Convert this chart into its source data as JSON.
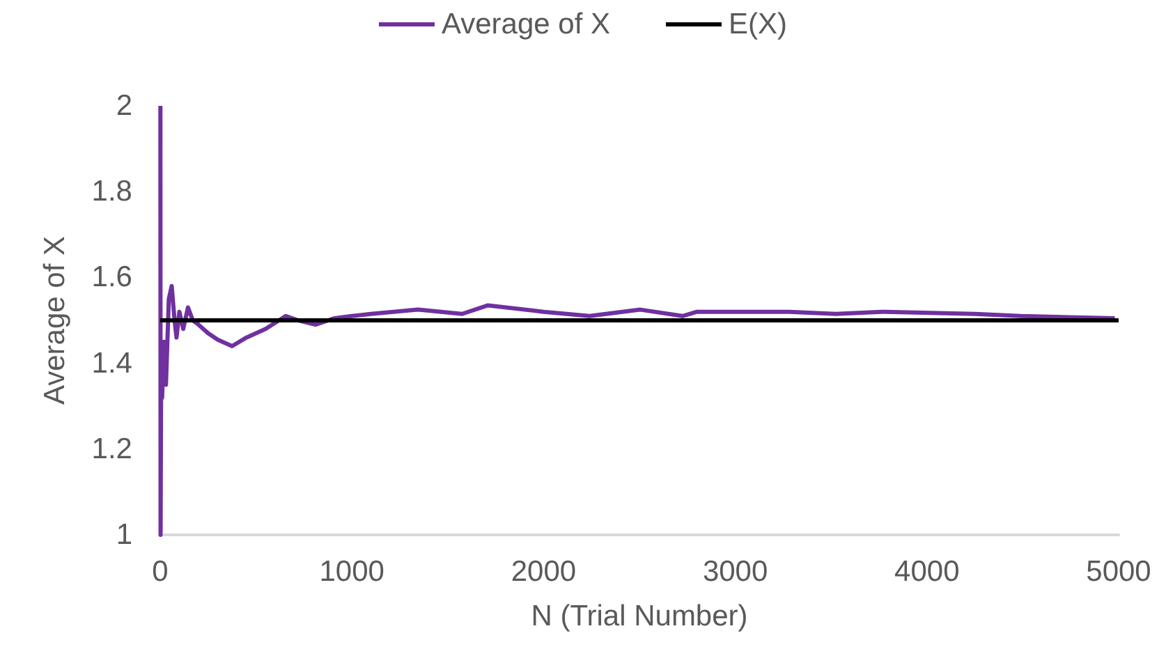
{
  "chart_data": {
    "type": "line",
    "xlabel": "N (Trial Number)",
    "ylabel": "Average of X",
    "series": [
      {
        "name": "Average of X",
        "color": "#7030a0",
        "x": [
          1,
          2,
          5,
          10,
          20,
          30,
          45,
          60,
          75,
          85,
          100,
          120,
          145,
          170,
          200,
          250,
          300,
          375,
          450,
          550,
          655,
          720,
          810,
          910,
          1000,
          1100,
          1345,
          1575,
          1710,
          2000,
          2240,
          2505,
          2725,
          2800,
          3280,
          3525,
          3765,
          4250,
          4490,
          4980
        ],
        "values": [
          2,
          1,
          1.4,
          1.32,
          1.45,
          1.35,
          1.55,
          1.58,
          1.5,
          1.46,
          1.52,
          1.48,
          1.53,
          1.5,
          1.49,
          1.47,
          1.455,
          1.44,
          1.46,
          1.48,
          1.51,
          1.5,
          1.49,
          1.505,
          1.51,
          1.515,
          1.525,
          1.515,
          1.535,
          1.52,
          1.51,
          1.525,
          1.51,
          1.52,
          1.52,
          1.515,
          1.52,
          1.515,
          1.51,
          1.505
        ]
      },
      {
        "name": "E(X)",
        "color": "#000000",
        "x": [
          0,
          5000
        ],
        "values": [
          1.5,
          1.5
        ]
      }
    ],
    "xlim": [
      0,
      5000
    ],
    "xticks": [
      0,
      1000,
      2000,
      3000,
      4000,
      5000
    ],
    "ylim": [
      1,
      2
    ],
    "yticks": [
      1,
      1.2,
      1.4,
      1.6,
      1.8,
      2
    ],
    "grid": false,
    "legend": "top",
    "marker": "none"
  }
}
